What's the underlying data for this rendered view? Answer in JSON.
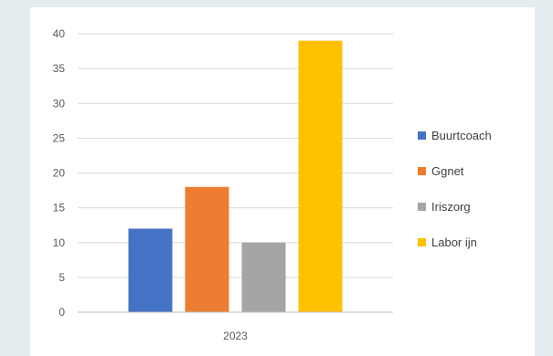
{
  "chart_data": {
    "type": "bar",
    "categories": [
      "2023"
    ],
    "series": [
      {
        "name": "Buurtcoach",
        "values": [
          12
        ],
        "color": "#4472c4"
      },
      {
        "name": "Ggnet",
        "values": [
          18
        ],
        "color": "#ed7d31"
      },
      {
        "name": "Iriszorg",
        "values": [
          10
        ],
        "color": "#a5a5a5"
      },
      {
        "name": "Labor ijn",
        "values": [
          39
        ],
        "color": "#ffc000"
      }
    ],
    "yticks": [
      "0",
      "5",
      "10",
      "15",
      "20",
      "25",
      "30",
      "35",
      "40"
    ],
    "ylim": [
      0,
      40
    ],
    "grid": true,
    "legend": "right"
  }
}
